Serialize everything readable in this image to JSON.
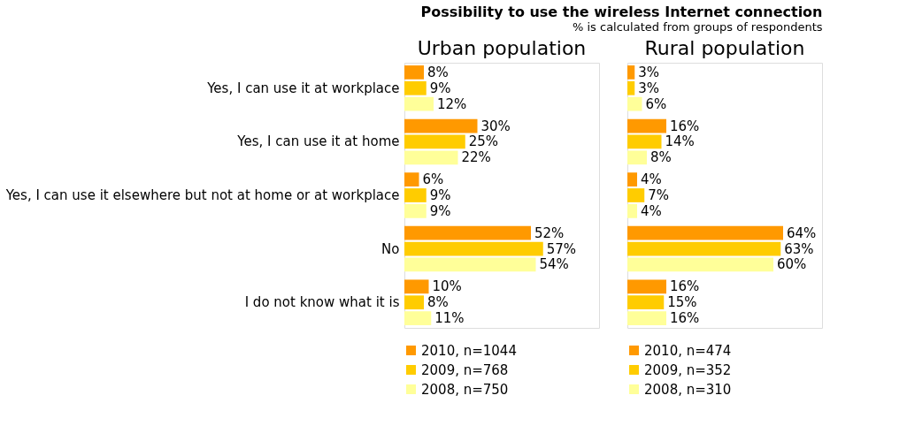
{
  "chart_data": [
    {
      "type": "other",
      "title": "Possibility to use the wireless Internet connection",
      "subtitle": "% is calculated from groups of respondents"
    },
    {
      "type": "bar",
      "orientation": "horizontal",
      "title": "Urban population",
      "categories": [
        "Yes, I can use it at workplace",
        "Yes, I can use it at home",
        "Yes, I can use it elsewhere but not at home or at workplace",
        "No",
        "I do not know what it is"
      ],
      "xlim": [
        0,
        80
      ],
      "tick_labels": "y",
      "legend": "bottom",
      "series": [
        {
          "name": "2010, n=1044",
          "color": "#ff9900",
          "values": [
            8,
            30,
            6,
            52,
            10
          ],
          "value_labels": [
            "8%",
            "30%",
            "6%",
            "52%",
            "10%"
          ]
        },
        {
          "name": "2009, n=768",
          "color": "#ffcc00",
          "values": [
            9,
            25,
            9,
            57,
            8
          ],
          "value_labels": [
            "9%",
            "25%",
            "9%",
            "57%",
            "8%"
          ]
        },
        {
          "name": "2008, n=750",
          "color": "#ffff99",
          "values": [
            12,
            22,
            9,
            54,
            11
          ],
          "value_labels": [
            "12%",
            "22%",
            "9%",
            "54%",
            "11%"
          ]
        }
      ]
    },
    {
      "type": "bar",
      "orientation": "horizontal",
      "title": "Rural population",
      "categories": [
        null,
        null,
        null,
        null,
        null
      ],
      "xlim": [
        0,
        80
      ],
      "tick_labels": false,
      "legend": "bottom",
      "series": [
        {
          "name": "2010, n=474",
          "color": "#ff9900",
          "values": [
            3,
            16,
            4,
            64,
            16
          ],
          "value_labels": [
            "3%",
            "16%",
            "4%",
            "64%",
            "16%"
          ]
        },
        {
          "name": "2009, n=352",
          "color": "#ffcc00",
          "values": [
            3,
            14,
            7,
            63,
            15
          ],
          "value_labels": [
            "3%",
            "14%",
            "7%",
            "63%",
            "15%"
          ]
        },
        {
          "name": "2008, n=310",
          "color": "#ffff99",
          "values": [
            6,
            8,
            4,
            60,
            16
          ],
          "value_labels": [
            "6%",
            "8%",
            "4%",
            "60%",
            "16%"
          ]
        }
      ]
    }
  ]
}
